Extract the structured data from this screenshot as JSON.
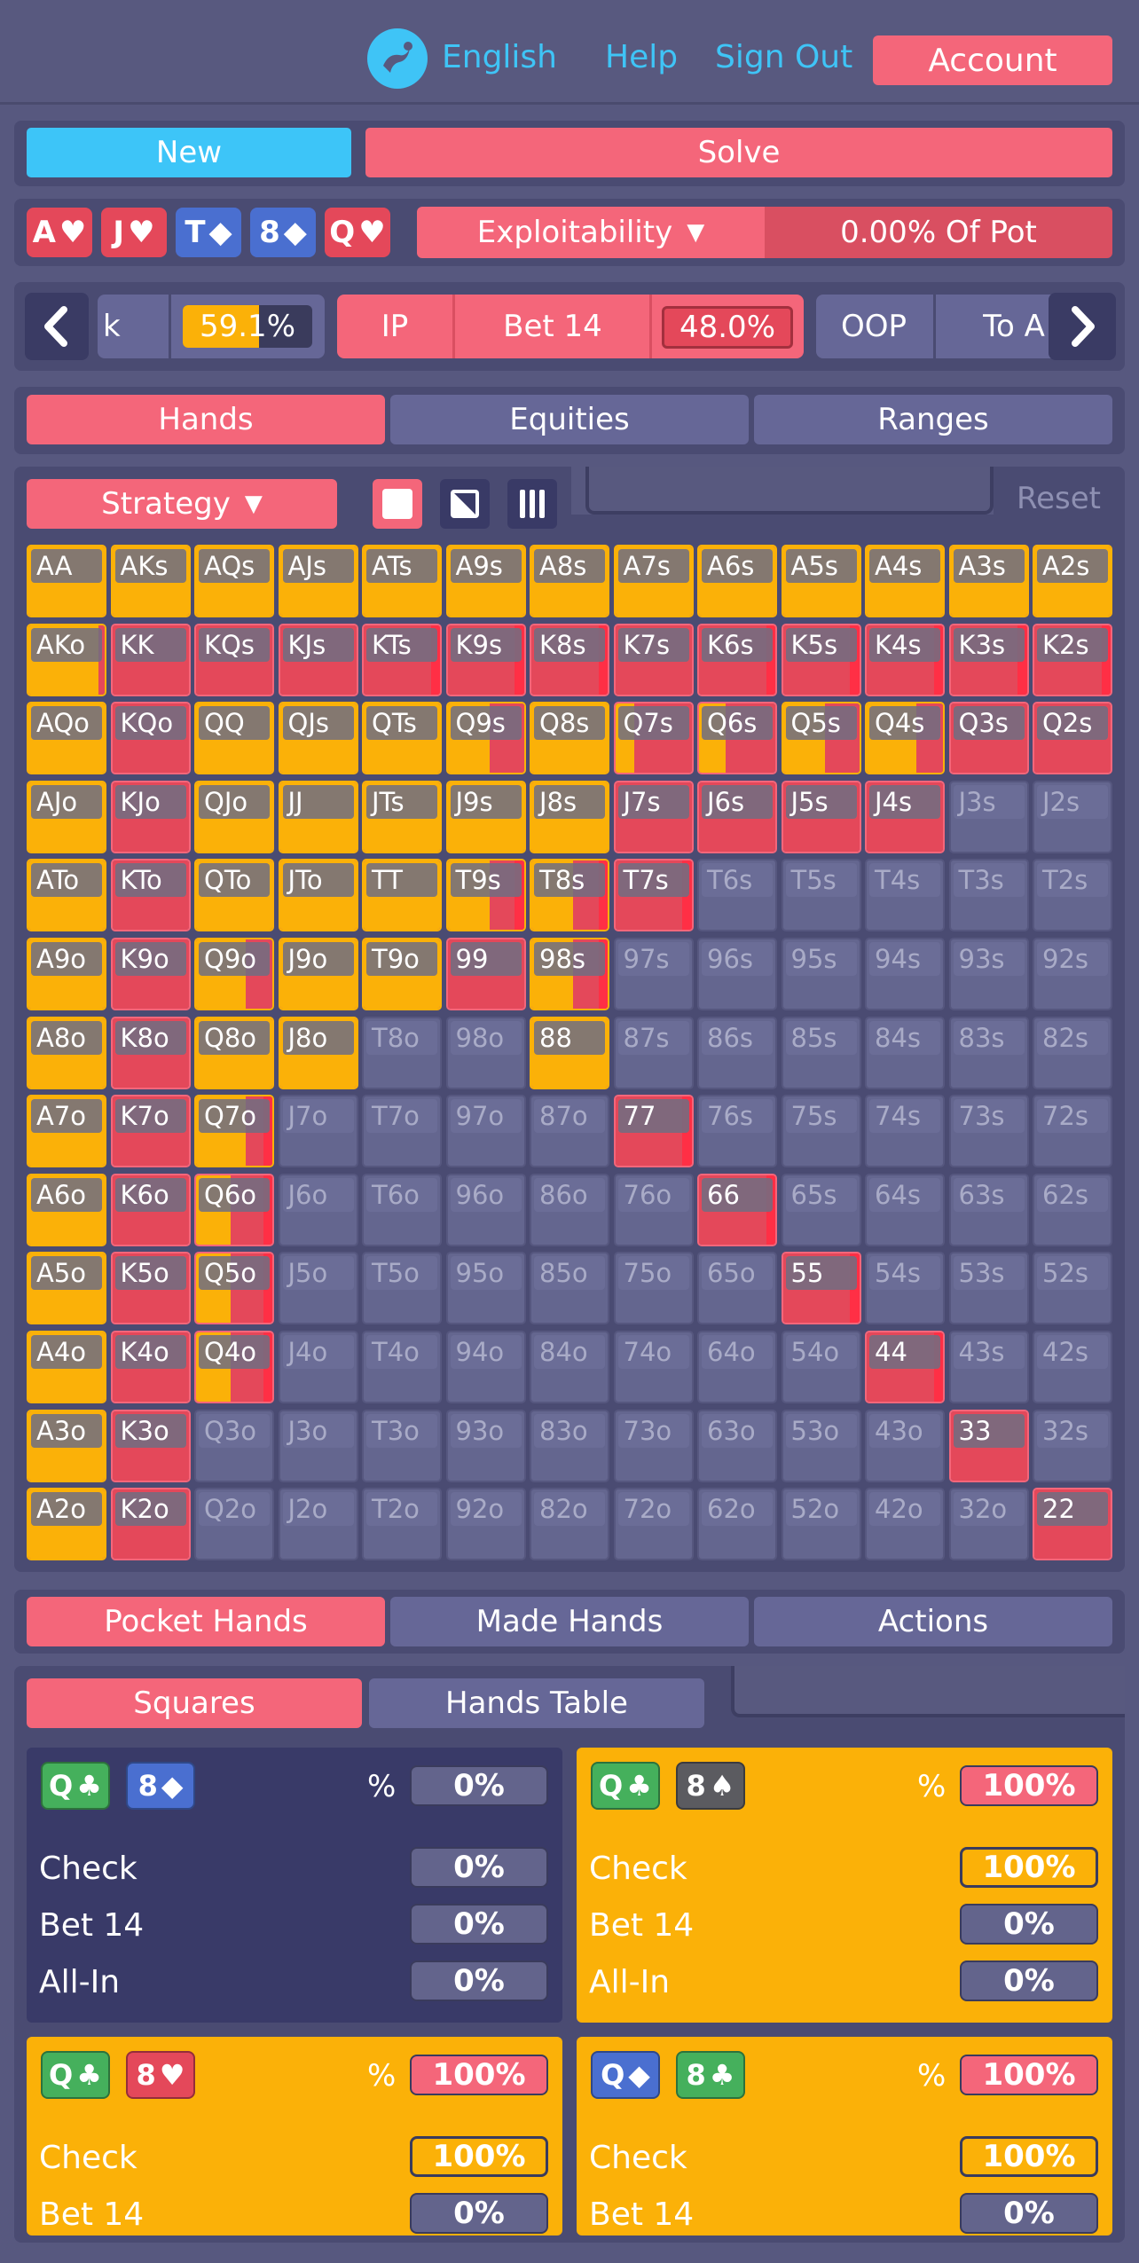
{
  "topbar": {
    "language": "English",
    "help": "Help",
    "sign_out": "Sign Out",
    "account": "Account"
  },
  "actions": {
    "new_label": "New",
    "solve_label": "Solve"
  },
  "board": {
    "cards": [
      {
        "rank": "A",
        "suit": "♥",
        "color": "#e4485a"
      },
      {
        "rank": "J",
        "suit": "♥",
        "color": "#e4485a"
      },
      {
        "rank": "T",
        "suit": "◆",
        "color": "#4a6fd0"
      },
      {
        "rank": "8",
        "suit": "◆",
        "color": "#4a6fd0"
      },
      {
        "rank": "Q",
        "suit": "♥",
        "color": "#e4485a"
      }
    ],
    "exploitability_label": "Exploitability",
    "exploitability_value": "0.00% Of Pot"
  },
  "nav": {
    "left_partial": "k",
    "left_pct": "59.1%",
    "ip_label": "IP",
    "bet_label": "Bet 14",
    "bet_pct": "48.0%",
    "oop_label": "OOP",
    "right_partial": "To A"
  },
  "main_tabs": {
    "hands": "Hands",
    "equities": "Equities",
    "ranges": "Ranges"
  },
  "toolbar": {
    "strategy_label": "Strategy",
    "reset_label": "Reset"
  },
  "grid": {
    "rows": [
      [
        "AA",
        "AKs",
        "AQs",
        "AJs",
        "ATs",
        "A9s",
        "A8s",
        "A7s",
        "A6s",
        "A5s",
        "A4s",
        "A3s",
        "A2s"
      ],
      [
        "AKo",
        "KK",
        "KQs",
        "KJs",
        "KTs",
        "K9s",
        "K8s",
        "K7s",
        "K6s",
        "K5s",
        "K4s",
        "K3s",
        "K2s"
      ],
      [
        "AQo",
        "KQo",
        "QQ",
        "QJs",
        "QTs",
        "Q9s",
        "Q8s",
        "Q7s",
        "Q6s",
        "Q5s",
        "Q4s",
        "Q3s",
        "Q2s"
      ],
      [
        "AJo",
        "KJo",
        "QJo",
        "JJ",
        "JTs",
        "J9s",
        "J8s",
        "J7s",
        "J6s",
        "J5s",
        "J4s",
        "J3s",
        "J2s"
      ],
      [
        "ATo",
        "KTo",
        "QTo",
        "JTo",
        "TT",
        "T9s",
        "T8s",
        "T7s",
        "T6s",
        "T5s",
        "T4s",
        "T3s",
        "T2s"
      ],
      [
        "A9o",
        "K9o",
        "Q9o",
        "J9o",
        "T9o",
        "99",
        "98s",
        "97s",
        "96s",
        "95s",
        "94s",
        "93s",
        "92s"
      ],
      [
        "A8o",
        "K8o",
        "Q8o",
        "J8o",
        "T8o",
        "98o",
        "88",
        "87s",
        "86s",
        "85s",
        "84s",
        "83s",
        "82s"
      ],
      [
        "A7o",
        "K7o",
        "Q7o",
        "J7o",
        "T7o",
        "97o",
        "87o",
        "77",
        "76s",
        "75s",
        "74s",
        "73s",
        "72s"
      ],
      [
        "A6o",
        "K6o",
        "Q6o",
        "J6o",
        "T6o",
        "96o",
        "86o",
        "76o",
        "66",
        "65s",
        "64s",
        "63s",
        "62s"
      ],
      [
        "A5o",
        "K5o",
        "Q5o",
        "J5o",
        "T5o",
        "95o",
        "85o",
        "75o",
        "65o",
        "55",
        "54s",
        "53s",
        "52s"
      ],
      [
        "A4o",
        "K4o",
        "Q4o",
        "J4o",
        "T4o",
        "94o",
        "84o",
        "74o",
        "64o",
        "54o",
        "44",
        "43s",
        "42s"
      ],
      [
        "A3o",
        "K3o",
        "Q3o",
        "J3o",
        "T3o",
        "93o",
        "83o",
        "73o",
        "63o",
        "53o",
        "43o",
        "33",
        "32s"
      ],
      [
        "A2o",
        "K2o",
        "Q2o",
        "J2o",
        "T2o",
        "92o",
        "82o",
        "72o",
        "62o",
        "52o",
        "42o",
        "32o",
        "22"
      ]
    ],
    "strategy": [
      [
        "g",
        "g",
        "g",
        "g",
        "g",
        "g",
        "g",
        "g",
        "g",
        "g",
        "g",
        "g",
        "g"
      ],
      [
        "r7",
        "r",
        "r",
        "r",
        "r3",
        "r3",
        "r3",
        "r",
        "r3",
        "r3",
        "r3",
        "r3",
        "r3"
      ],
      [
        "g",
        "r",
        "g",
        "g",
        "g",
        "m6",
        "g",
        "m3",
        "m4",
        "m6",
        "m7",
        "r",
        "r"
      ],
      [
        "g",
        "r",
        "g",
        "g",
        "g",
        "g",
        "g",
        "r",
        "r",
        "r",
        "r",
        "n",
        "n"
      ],
      [
        "g",
        "r",
        "g",
        "g",
        "g",
        "m6s",
        "m6s",
        "r3",
        "n",
        "n",
        "n",
        "n",
        "n"
      ],
      [
        "g",
        "r",
        "m7",
        "g",
        "g",
        "r",
        "m6s",
        "n",
        "n",
        "n",
        "n",
        "n",
        "n"
      ],
      [
        "g",
        "r",
        "g",
        "g",
        "n",
        "n",
        "g",
        "n",
        "n",
        "n",
        "n",
        "n",
        "n"
      ],
      [
        "g",
        "r",
        "m7s",
        "n",
        "n",
        "n",
        "n",
        "r3",
        "n",
        "n",
        "n",
        "n",
        "n"
      ],
      [
        "g",
        "r",
        "m5s",
        "n",
        "n",
        "n",
        "n",
        "n",
        "r3",
        "n",
        "n",
        "n",
        "n"
      ],
      [
        "g",
        "r",
        "m5s",
        "n",
        "n",
        "n",
        "n",
        "n",
        "n",
        "r3",
        "n",
        "n",
        "n"
      ],
      [
        "g",
        "r",
        "m5s",
        "n",
        "n",
        "n",
        "n",
        "n",
        "n",
        "n",
        "r3",
        "n",
        "n"
      ],
      [
        "g",
        "r",
        "n",
        "n",
        "n",
        "n",
        "n",
        "n",
        "n",
        "n",
        "n",
        "r",
        "n"
      ],
      [
        "g",
        "r",
        "n",
        "n",
        "n",
        "n",
        "n",
        "n",
        "n",
        "n",
        "n",
        "n",
        "r"
      ]
    ]
  },
  "bottom_tabs": {
    "pocket_hands": "Pocket Hands",
    "made_hands": "Made Hands",
    "actions": "Actions"
  },
  "sub_tabs": {
    "squares": "Squares",
    "hands_table": "Hands Table"
  },
  "squares": [
    {
      "cards": [
        {
          "rank": "Q",
          "suit": "♣",
          "color": "#45b05c"
        },
        {
          "rank": "8",
          "suit": "◆",
          "color": "#4a6fd0"
        }
      ],
      "pct_label": "%",
      "pct_value": "0%",
      "rows": [
        {
          "label": "Check",
          "value": "0%"
        },
        {
          "label": "Bet 14",
          "value": "0%"
        },
        {
          "label": "All-In",
          "value": "0%"
        }
      ]
    },
    {
      "cards": [
        {
          "rank": "Q",
          "suit": "♣",
          "color": "#45b05c"
        },
        {
          "rank": "8",
          "suit": "♠",
          "color": "#5b5b60"
        }
      ],
      "pct_label": "%",
      "pct_value": "100%",
      "rows": [
        {
          "label": "Check",
          "value": "100%"
        },
        {
          "label": "Bet 14",
          "value": "0%"
        },
        {
          "label": "All-In",
          "value": "0%"
        }
      ]
    },
    {
      "cards": [
        {
          "rank": "Q",
          "suit": "♣",
          "color": "#45b05c"
        },
        {
          "rank": "8",
          "suit": "♥",
          "color": "#e4485a"
        }
      ],
      "pct_label": "%",
      "pct_value": "100%",
      "rows": [
        {
          "label": "Check",
          "value": "100%"
        },
        {
          "label": "Bet 14",
          "value": "0%"
        }
      ]
    },
    {
      "cards": [
        {
          "rank": "Q",
          "suit": "◆",
          "color": "#4a6fd0"
        },
        {
          "rank": "8",
          "suit": "♣",
          "color": "#45b05c"
        }
      ],
      "pct_label": "%",
      "pct_value": "100%",
      "rows": [
        {
          "label": "Check",
          "value": "100%"
        },
        {
          "label": "Bet 14",
          "value": "0%"
        }
      ]
    }
  ]
}
